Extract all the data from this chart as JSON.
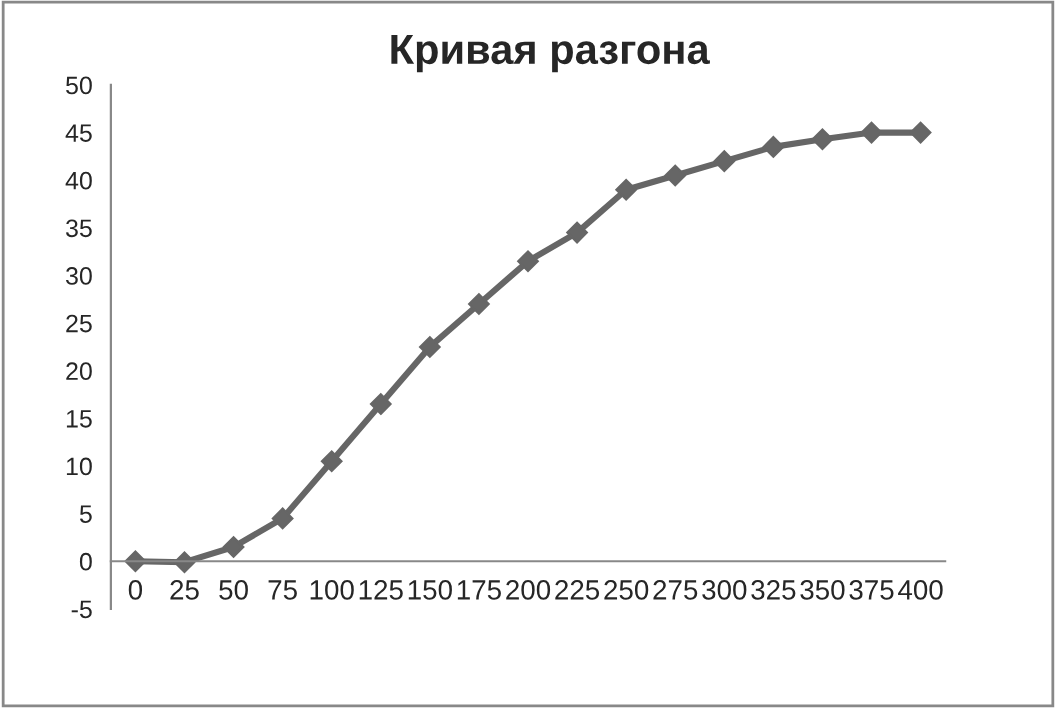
{
  "chart_data": {
    "type": "line",
    "title": "Кривая разгона",
    "categories": [
      "0",
      "25",
      "50",
      "75",
      "100",
      "125",
      "150",
      "175",
      "200",
      "225",
      "250",
      "275",
      "300",
      "325",
      "350",
      "375",
      "400"
    ],
    "series": [
      {
        "color": "#666666",
        "values": [
          0,
          -0.1,
          1.5,
          4.5,
          10.5,
          16.5,
          22.5,
          27,
          31.5,
          34.5,
          39,
          40.5,
          42,
          43.5,
          44.3,
          45,
          45
        ]
      }
    ],
    "ylim": [
      -5,
      50
    ],
    "yticks": [
      -5,
      0,
      5,
      10,
      15,
      20,
      25,
      30,
      35,
      40,
      45,
      50
    ],
    "grid": false,
    "legend": false,
    "marker": "diamond",
    "line_style": "solid"
  }
}
